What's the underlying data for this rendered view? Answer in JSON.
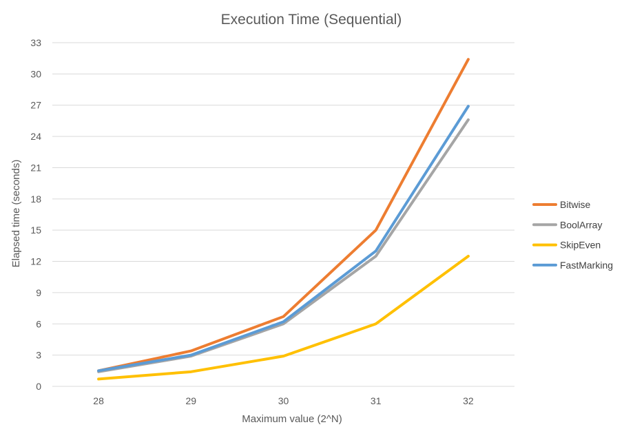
{
  "chart_data": {
    "type": "line",
    "title": "Execution Time (Sequential)",
    "xlabel": "Maximum value (2^N)",
    "ylabel": "Elapsed time (seconds)",
    "x": [
      28,
      29,
      30,
      31,
      32
    ],
    "x_tick_labels": [
      "28",
      "29",
      "30",
      "31",
      "32"
    ],
    "ylim": [
      0,
      33
    ],
    "y_ticks": [
      0,
      3,
      6,
      9,
      12,
      15,
      18,
      21,
      24,
      27,
      30,
      33
    ],
    "y_tick_labels": [
      "0",
      "3",
      "6",
      "9",
      "12",
      "15",
      "18",
      "21",
      "24",
      "27",
      "30",
      "33"
    ],
    "grid": true,
    "legend_position": "right",
    "series": [
      {
        "name": "Bitwise",
        "color": "#ED7D31",
        "values": [
          1.5,
          3.4,
          6.7,
          15.0,
          31.4
        ]
      },
      {
        "name": "BoolArray",
        "color": "#A5A5A5",
        "values": [
          1.4,
          2.9,
          6.0,
          12.5,
          25.6
        ]
      },
      {
        "name": "SkipEven",
        "color": "#FFC000",
        "values": [
          0.7,
          1.4,
          2.9,
          6.0,
          12.5
        ]
      },
      {
        "name": "FastMarking",
        "color": "#5B9BD5",
        "values": [
          1.5,
          3.0,
          6.2,
          13.0,
          26.9
        ]
      }
    ]
  }
}
